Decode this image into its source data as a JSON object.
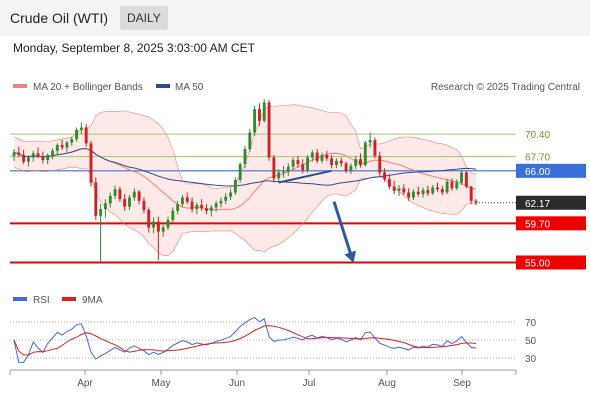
{
  "header": {
    "title": "Crude Oil (WTI)",
    "timeframe": "DAILY",
    "datetime": "Monday, September 8, 2025 3:03:00 AM CET"
  },
  "colors": {
    "price_up": "#2e8b2e",
    "price_down": "#cc2222",
    "ma20": "#f08080",
    "ma50": "#2a4f8f",
    "rsi": "#4169e1",
    "rsi_ma": "#e02020",
    "support": "#ee0000",
    "pivot": "#3a6fd8",
    "resistance": "#9acd64",
    "forecast": "#2c5aa0"
  },
  "chart_data": [
    {
      "type": "candlestick",
      "legend": [
        {
          "label": "MA 20 + Bollinger Bands",
          "color": "#f08080"
        },
        {
          "label": "MA 50",
          "color": "#2a4f8f"
        }
      ],
      "legend_position": "top-left",
      "source": "Research © 2025 Trading Central",
      "x_ticks": [
        "Apr",
        "May",
        "Jun",
        "Jul",
        "Aug",
        "Sep"
      ],
      "ylim": [
        53.5,
        74.5
      ],
      "levels": [
        {
          "value": 70.4,
          "label": "70.40",
          "kind": "resistance",
          "color": "#9acd64"
        },
        {
          "value": 67.7,
          "label": "67.70",
          "kind": "resistance",
          "color": "#9acd64"
        },
        {
          "value": 66.0,
          "label": "66.00",
          "kind": "pivot",
          "color": "#3a6fd8"
        },
        {
          "value": 62.17,
          "label": "62.17",
          "kind": "last",
          "color": "#2b2b2b"
        },
        {
          "value": 59.7,
          "label": "59.70",
          "kind": "support",
          "color": "#ee0000"
        },
        {
          "value": 55.0,
          "label": "55.00",
          "kind": "support",
          "color": "#ee0000"
        }
      ],
      "trendline": [
        [
          55,
          64.6
        ],
        [
          66,
          66.0
        ]
      ],
      "forecast_arrow": [
        [
          66.5,
          62.3
        ],
        [
          70.3,
          55.4
        ]
      ],
      "ohlc": [
        [
          67.8,
          68.6,
          67.2,
          68.2
        ],
        [
          68.2,
          68.9,
          67.6,
          67.9
        ],
        [
          67.9,
          68.5,
          66.8,
          67.1
        ],
        [
          67.1,
          67.9,
          66.5,
          67.6
        ],
        [
          67.6,
          68.4,
          67.1,
          68.1
        ],
        [
          68.1,
          68.8,
          67.5,
          67.7
        ],
        [
          67.7,
          68.3,
          66.9,
          67.3
        ],
        [
          67.3,
          68.1,
          66.8,
          67.9
        ],
        [
          67.9,
          68.7,
          67.4,
          68.4
        ],
        [
          68.4,
          69.3,
          68.0,
          69.1
        ],
        [
          69.1,
          69.7,
          68.5,
          68.8
        ],
        [
          68.8,
          69.6,
          68.3,
          69.4
        ],
        [
          69.4,
          70.1,
          69.0,
          69.8
        ],
        [
          69.8,
          71.2,
          69.5,
          70.9
        ],
        [
          70.9,
          71.8,
          70.4,
          71.2
        ],
        [
          71.2,
          71.6,
          68.9,
          69.3
        ],
        [
          69.3,
          69.6,
          64.1,
          64.6
        ],
        [
          64.6,
          65.2,
          60.1,
          60.6
        ],
        [
          60.6,
          62.0,
          55.0,
          61.4
        ],
        [
          61.4,
          62.6,
          60.4,
          62.1
        ],
        [
          62.1,
          63.4,
          61.6,
          63.0
        ],
        [
          63.0,
          64.2,
          62.6,
          63.8
        ],
        [
          63.8,
          64.1,
          62.3,
          62.6
        ],
        [
          62.6,
          63.2,
          61.2,
          61.7
        ],
        [
          61.7,
          63.1,
          61.3,
          62.8
        ],
        [
          62.8,
          63.9,
          62.4,
          63.5
        ],
        [
          63.5,
          63.7,
          62.0,
          62.4
        ],
        [
          62.4,
          62.8,
          60.9,
          61.3
        ],
        [
          61.3,
          61.6,
          58.6,
          59.2
        ],
        [
          59.2,
          60.4,
          58.5,
          59.9
        ],
        [
          59.9,
          60.5,
          55.3,
          58.7
        ],
        [
          58.7,
          59.5,
          58.1,
          59.2
        ],
        [
          59.2,
          60.5,
          58.9,
          60.1
        ],
        [
          60.1,
          61.6,
          59.8,
          61.2
        ],
        [
          61.2,
          62.4,
          60.8,
          62.0
        ],
        [
          62.0,
          63.1,
          61.7,
          62.8
        ],
        [
          62.8,
          63.4,
          62.0,
          62.3
        ],
        [
          62.3,
          62.8,
          61.0,
          61.4
        ],
        [
          61.4,
          62.2,
          60.8,
          61.9
        ],
        [
          61.9,
          62.6,
          61.2,
          61.5
        ],
        [
          61.5,
          62.0,
          60.8,
          61.2
        ],
        [
          61.2,
          61.9,
          60.5,
          61.6
        ],
        [
          61.6,
          62.4,
          61.1,
          62.1
        ],
        [
          62.1,
          62.8,
          61.6,
          62.4
        ],
        [
          62.4,
          63.3,
          62.0,
          62.9
        ],
        [
          62.9,
          63.8,
          62.5,
          63.4
        ],
        [
          63.4,
          65.2,
          63.1,
          64.9
        ],
        [
          64.9,
          67.0,
          64.6,
          66.8
        ],
        [
          66.8,
          69.0,
          66.3,
          68.6
        ],
        [
          68.6,
          71.0,
          68.3,
          70.6
        ],
        [
          70.6,
          73.8,
          70.2,
          73.4
        ],
        [
          73.4,
          74.1,
          71.4,
          72.0
        ],
        [
          72.0,
          74.6,
          71.8,
          74.2
        ],
        [
          74.2,
          74.5,
          67.2,
          67.6
        ],
        [
          67.6,
          67.9,
          64.6,
          65.1
        ],
        [
          65.1,
          66.2,
          64.7,
          65.8
        ],
        [
          65.8,
          66.6,
          65.2,
          65.9
        ],
        [
          65.9,
          66.9,
          65.4,
          66.5
        ],
        [
          66.5,
          67.6,
          66.1,
          67.3
        ],
        [
          67.3,
          67.8,
          66.4,
          66.8
        ],
        [
          66.8,
          67.4,
          65.7,
          66.1
        ],
        [
          66.1,
          67.9,
          65.8,
          67.6
        ],
        [
          67.6,
          68.5,
          67.1,
          68.2
        ],
        [
          68.2,
          68.6,
          66.9,
          67.2
        ],
        [
          67.2,
          68.2,
          66.9,
          67.9
        ],
        [
          67.9,
          68.4,
          67.2,
          67.5
        ],
        [
          67.5,
          67.9,
          66.3,
          66.7
        ],
        [
          66.7,
          67.5,
          66.3,
          67.2
        ],
        [
          67.2,
          67.6,
          66.5,
          66.9
        ],
        [
          66.9,
          67.1,
          65.7,
          66.0
        ],
        [
          66.0,
          66.9,
          65.6,
          66.6
        ],
        [
          66.6,
          67.8,
          66.2,
          67.4
        ],
        [
          67.4,
          68.1,
          66.4,
          66.7
        ],
        [
          66.7,
          69.6,
          66.5,
          69.4
        ],
        [
          69.4,
          70.6,
          68.8,
          69.7
        ],
        [
          69.7,
          70.0,
          67.5,
          67.8
        ],
        [
          67.8,
          68.3,
          65.4,
          65.8
        ],
        [
          65.8,
          66.3,
          64.7,
          65.0
        ],
        [
          65.0,
          65.6,
          63.8,
          64.1
        ],
        [
          64.1,
          64.8,
          63.2,
          63.6
        ],
        [
          63.6,
          64.3,
          63.0,
          63.9
        ],
        [
          63.9,
          64.4,
          63.1,
          63.4
        ],
        [
          63.4,
          63.9,
          62.4,
          62.8
        ],
        [
          62.8,
          63.8,
          62.5,
          63.5
        ],
        [
          63.5,
          64.1,
          62.9,
          63.2
        ],
        [
          63.2,
          64.0,
          62.8,
          63.7
        ],
        [
          63.7,
          64.2,
          63.0,
          63.3
        ],
        [
          63.3,
          64.3,
          63.1,
          64.0
        ],
        [
          64.0,
          64.6,
          63.5,
          63.8
        ],
        [
          63.8,
          64.2,
          63.1,
          63.4
        ],
        [
          63.4,
          65.0,
          63.2,
          64.7
        ],
        [
          64.7,
          65.1,
          63.6,
          63.9
        ],
        [
          63.9,
          65.0,
          63.7,
          64.6
        ],
        [
          64.6,
          66.1,
          64.3,
          65.8
        ],
        [
          65.8,
          66.0,
          63.9,
          64.1
        ],
        [
          64.1,
          64.2,
          62.0,
          62.4
        ],
        [
          62.4,
          62.6,
          61.9,
          62.17
        ]
      ]
    },
    {
      "type": "line",
      "legend": [
        {
          "label": "RSI",
          "color": "#4169e1"
        },
        {
          "label": "9MA",
          "color": "#e02020"
        }
      ],
      "y_ticks": [
        70,
        50,
        30
      ],
      "ylim": [
        20,
        80
      ]
    }
  ]
}
